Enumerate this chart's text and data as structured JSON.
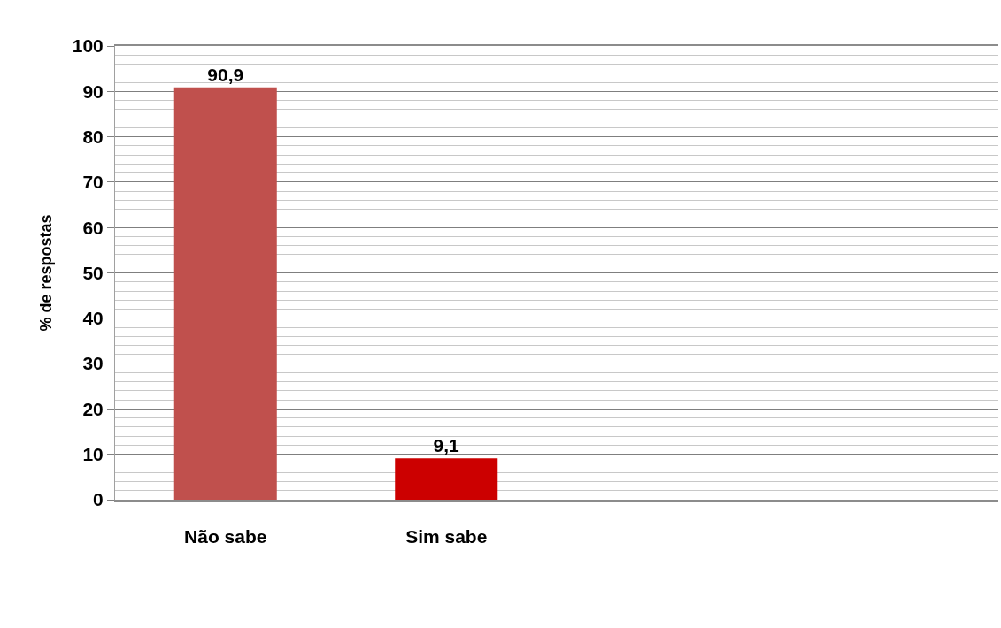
{
  "chart_data": {
    "type": "bar",
    "ylabel": "% de respostas",
    "categories": [
      "Não sabe",
      "Sim sabe",
      null,
      null
    ],
    "values": [
      90.9,
      9.1,
      null,
      null
    ],
    "colors": [
      "#c0504d",
      "#cc0000",
      null,
      null
    ],
    "value_labels": [
      "90,9",
      "9,1",
      null,
      null
    ],
    "ylim": [
      0,
      100
    ],
    "yticks": [
      0,
      {
        "value": 2,
        "label": null
      },
      {
        "value": 4,
        "label": null
      },
      {
        "value": 6,
        "label": null
      },
      {
        "value": 8,
        "label": null
      },
      10,
      {
        "value": 12,
        "label": null
      },
      {
        "value": 14,
        "label": null
      },
      {
        "value": 16,
        "label": null
      },
      {
        "value": 18,
        "label": null
      },
      20,
      {
        "value": 22,
        "label": null
      },
      {
        "value": 24,
        "label": null
      },
      {
        "value": 26,
        "label": null
      },
      {
        "value": 28,
        "label": null
      },
      30,
      {
        "value": 32,
        "label": null
      },
      {
        "value": 34,
        "label": null
      },
      {
        "value": 36,
        "label": null
      },
      {
        "value": 38,
        "label": null
      },
      40,
      {
        "value": 42,
        "label": null
      },
      {
        "value": 44,
        "label": null
      },
      {
        "value": 46,
        "label": null
      },
      {
        "value": 48,
        "label": null
      },
      50,
      {
        "value": 52,
        "label": null
      },
      {
        "value": 54,
        "label": null
      },
      {
        "value": 56,
        "label": null
      },
      {
        "value": 58,
        "label": null
      },
      60,
      {
        "value": 62,
        "label": null
      },
      {
        "value": 64,
        "label": null
      },
      {
        "value": 66,
        "label": null
      },
      {
        "value": 68,
        "label": null
      },
      70,
      {
        "value": 72,
        "label": null
      },
      {
        "value": 74,
        "label": null
      },
      {
        "value": 76,
        "label": null
      },
      {
        "value": 78,
        "label": null
      },
      80,
      {
        "value": 82,
        "label": null
      },
      {
        "value": 84,
        "label": null
      },
      {
        "value": 86,
        "label": null
      },
      {
        "value": 88,
        "label": null
      },
      90,
      {
        "value": 92,
        "label": null
      },
      {
        "value": 94,
        "label": null
      },
      {
        "value": 96,
        "label": null
      },
      {
        "value": 98,
        "label": null
      },
      100
    ],
    "grid": "y"
  }
}
